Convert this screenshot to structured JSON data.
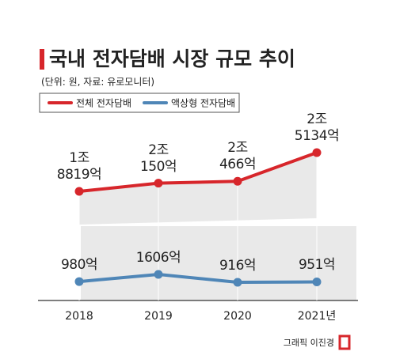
{
  "chart_data": {
    "type": "line",
    "title": "국내 전자담배 시장 규모 추이",
    "subtitle": "(단위: 원, 자료: 유로모니터)",
    "categories": [
      "2018",
      "2019",
      "2020",
      "2021년"
    ],
    "series": [
      {
        "name": "전체 전자담배",
        "color": "#d7262b",
        "values": [
          18819,
          20150,
          20466,
          25134
        ],
        "value_labels": [
          "1조\n8819억",
          "2조\n150억",
          "2조\n466억",
          "2조\n5134억"
        ]
      },
      {
        "name": "액상형 전자담배",
        "color": "#4f86b7",
        "values": [
          980,
          1606,
          916,
          951
        ],
        "value_labels": [
          "980억",
          "1606억",
          "916억",
          "951억"
        ]
      }
    ],
    "credit": "그래픽 이진경"
  }
}
